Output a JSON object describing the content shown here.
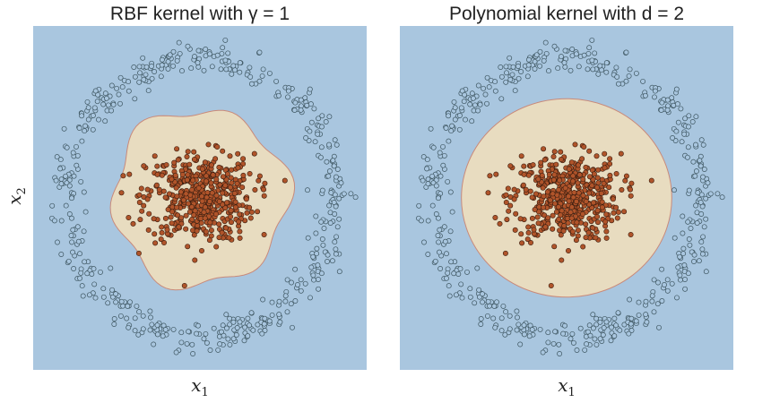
{
  "chart_data": [
    {
      "type": "scatter",
      "title": "RBF kernel with γ = 1",
      "xlabel": "x₁",
      "ylabel": "x₂",
      "xlim": [
        -1.3,
        1.3
      ],
      "ylim": [
        -1.3,
        1.3
      ],
      "grid": false,
      "regions": {
        "outer_class_color": "#a9c6df",
        "inner_class_color": "#e8dcc0",
        "boundary_color": "#c98a7a"
      },
      "decision_boundary": {
        "shape": "wavy-blob",
        "mean_radius": 0.68,
        "wave_amplitude": 0.045,
        "wave_count": 6
      },
      "series": [
        {
          "class": "outer",
          "color": "#a9c6df",
          "distribution": "ring",
          "radius": 1.05,
          "spread": 0.06,
          "count": 500
        },
        {
          "class": "inner",
          "color": "#b0542a",
          "distribution": "gaussian",
          "radius": 0.3,
          "count": 500
        }
      ]
    },
    {
      "type": "scatter",
      "title": "Polynomial kernel with d = 2",
      "xlabel": "x₁",
      "ylabel": "",
      "xlim": [
        -1.3,
        1.3
      ],
      "ylim": [
        -1.3,
        1.3
      ],
      "grid": false,
      "regions": {
        "outer_class_color": "#a9c6df",
        "inner_class_color": "#e8dcc0",
        "boundary_color": "#c98a7a"
      },
      "decision_boundary": {
        "shape": "ellipse",
        "rx": 0.82,
        "ry": 0.75
      },
      "series": [
        {
          "class": "outer",
          "color": "#a9c6df",
          "distribution": "ring",
          "radius": 1.05,
          "spread": 0.06,
          "count": 500
        },
        {
          "class": "inner",
          "color": "#b0542a",
          "distribution": "gaussian",
          "radius": 0.3,
          "count": 500
        }
      ]
    }
  ]
}
